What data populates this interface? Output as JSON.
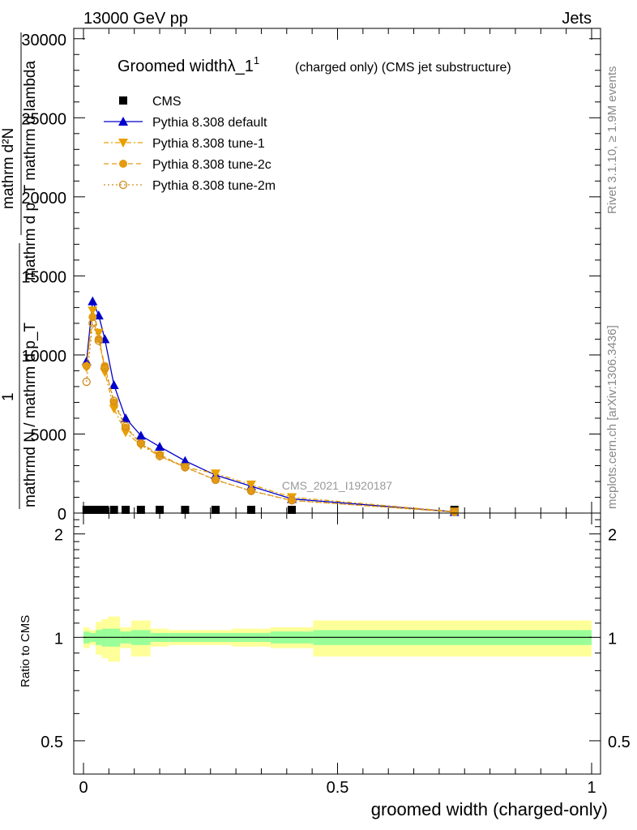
{
  "header": {
    "left": "13000 GeV pp",
    "right": "Jets"
  },
  "side_labels": {
    "rivet": "Rivet 3.1.10, ≥ 1.9M events",
    "mcplots": "mcplots.cern.ch [arXiv:1306.3436]"
  },
  "watermark": "CMS_2021_I1920187",
  "main_plot": {
    "title_main": "Groomed widthλ_1",
    "title_sup": "1",
    "title_rest": "(charged only) (CMS jet substructure)",
    "ylabel_top_num": "mathrm d²N",
    "ylabel_top_den": "mathrm d p_T mathrm d lambda",
    "ylabel_frac_num": "1",
    "ylabel_frac_den": "mathrmd N / mathrm d p_T",
    "y_tick_labels": [
      "0",
      "5000",
      "10000",
      "15000",
      "20000",
      "25000",
      "30000"
    ],
    "legend": [
      {
        "label": "CMS",
        "color": "#000000",
        "marker": "square",
        "style": "none"
      },
      {
        "label": "Pythia 8.308 default",
        "color": "#0000cc",
        "marker": "triangle-up",
        "style": "solid"
      },
      {
        "label": "Pythia 8.308 tune-1",
        "color": "#e8a000",
        "marker": "triangle-down",
        "style": "dashdot"
      },
      {
        "label": "Pythia 8.308 tune-2c",
        "color": "#e59b10",
        "marker": "circle",
        "style": "dashed"
      },
      {
        "label": "Pythia 8.308 tune-2m",
        "color": "#d08c20",
        "marker": "open-circle",
        "style": "dotted"
      }
    ]
  },
  "ratio_plot": {
    "ylabel": "Ratio to CMS",
    "y_tick_labels": [
      "0.5",
      "1",
      "2"
    ],
    "x_tick_labels": [
      "0",
      "0.5",
      "1"
    ],
    "xlabel": "groomed width (charged-only)",
    "band_colors": {
      "inner": "#99ff99",
      "outer": "#ffff99"
    }
  },
  "chart_data": {
    "type": "line",
    "xlim": [
      -0.02,
      1.02
    ],
    "ylim": [
      0,
      30500
    ],
    "ratio_ylim": [
      0.4,
      2.3
    ],
    "ratio_scale": "log",
    "x": [
      0.006,
      0.018,
      0.03,
      0.042,
      0.06,
      0.083,
      0.113,
      0.15,
      0.2,
      0.26,
      0.33,
      0.41,
      0.73
    ],
    "series": [
      {
        "name": "CMS",
        "values": [
          0,
          0,
          0,
          0,
          0,
          0,
          0,
          0,
          0,
          0,
          0,
          0,
          0
        ]
      },
      {
        "name": "Pythia 8.308 default",
        "values": [
          9600,
          13400,
          12500,
          11000,
          8100,
          6000,
          4900,
          4200,
          3300,
          2400,
          1700,
          900,
          80
        ]
      },
      {
        "name": "Pythia 8.308 tune-1",
        "values": [
          9200,
          12800,
          11400,
          8900,
          6600,
          5100,
          4300,
          3600,
          2900,
          2500,
          1800,
          1000,
          90
        ]
      },
      {
        "name": "Pythia 8.308 tune-2c",
        "values": [
          9300,
          12400,
          11000,
          9300,
          7000,
          5400,
          4400,
          3700,
          2900,
          2100,
          1400,
          800,
          70
        ]
      },
      {
        "name": "Pythia 8.308 tune-2m",
        "values": [
          8300,
          12000,
          10900,
          9200,
          7100,
          5500,
          4400,
          3600,
          2900,
          2100,
          1400,
          800,
          60
        ]
      }
    ],
    "ratio_bands": {
      "edges": [
        0.0,
        0.012,
        0.024,
        0.036,
        0.048,
        0.072,
        0.094,
        0.132,
        0.168,
        0.232,
        0.292,
        0.368,
        0.452,
        1.0
      ],
      "inner": [
        0.04,
        0.03,
        0.05,
        0.06,
        0.06,
        0.04,
        0.05,
        0.03,
        0.03,
        0.03,
        0.03,
        0.04,
        0.05
      ],
      "outer": [
        0.07,
        0.05,
        0.11,
        0.13,
        0.15,
        0.07,
        0.12,
        0.06,
        0.05,
        0.05,
        0.06,
        0.07,
        0.12
      ]
    }
  }
}
